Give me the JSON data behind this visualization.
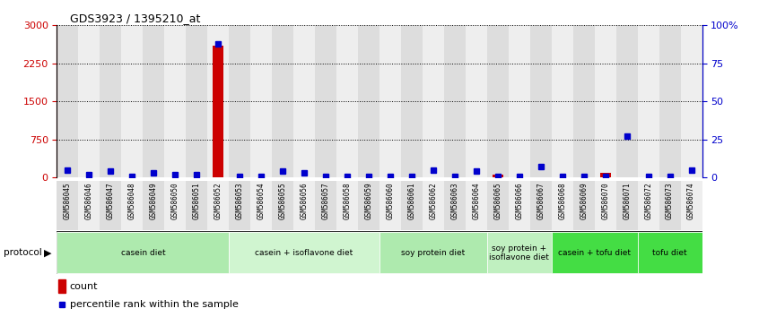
{
  "title": "GDS3923 / 1395210_at",
  "samples": [
    "GSM586045",
    "GSM586046",
    "GSM586047",
    "GSM586048",
    "GSM586049",
    "GSM586050",
    "GSM586051",
    "GSM586052",
    "GSM586053",
    "GSM586054",
    "GSM586055",
    "GSM586056",
    "GSM586057",
    "GSM586058",
    "GSM586059",
    "GSM586060",
    "GSM586061",
    "GSM586062",
    "GSM586063",
    "GSM586064",
    "GSM586065",
    "GSM586066",
    "GSM586067",
    "GSM586068",
    "GSM586069",
    "GSM586070",
    "GSM586071",
    "GSM586072",
    "GSM586073",
    "GSM586074"
  ],
  "count_values": [
    0,
    0,
    0,
    0,
    0,
    0,
    0,
    2600,
    0,
    0,
    0,
    0,
    0,
    0,
    0,
    0,
    0,
    0,
    0,
    0,
    50,
    0,
    0,
    0,
    0,
    100,
    0,
    0,
    0,
    0
  ],
  "percentile_values": [
    5,
    2,
    4,
    1,
    3,
    2,
    2,
    88,
    1,
    1,
    4,
    3,
    1,
    1,
    1,
    1,
    1,
    5,
    1,
    4,
    1,
    1,
    7,
    1,
    1,
    1,
    27,
    1,
    1,
    5
  ],
  "groups": [
    {
      "label": "casein diet",
      "start": 0,
      "end": 7,
      "color": "#aeeaae"
    },
    {
      "label": "casein + isoflavone diet",
      "start": 8,
      "end": 14,
      "color": "#d0f5d0"
    },
    {
      "label": "soy protein diet",
      "start": 15,
      "end": 19,
      "color": "#aeeaae"
    },
    {
      "label": "soy protein +\nisoflavone diet",
      "start": 20,
      "end": 22,
      "color": "#c0f0c0"
    },
    {
      "label": "casein + tofu diet",
      "start": 23,
      "end": 26,
      "color": "#44dd44"
    },
    {
      "label": "tofu diet",
      "start": 27,
      "end": 29,
      "color": "#44dd44"
    }
  ],
  "ylim_left": [
    0,
    3000
  ],
  "ylim_right": [
    0,
    100
  ],
  "yticks_left": [
    0,
    750,
    1500,
    2250,
    3000
  ],
  "ytick_labels_left": [
    "0",
    "750",
    "1500",
    "2250",
    "3000"
  ],
  "yticks_right": [
    0,
    25,
    50,
    75,
    100
  ],
  "ytick_labels_right": [
    "0",
    "25",
    "50",
    "75",
    "100%"
  ],
  "count_color": "#cc0000",
  "percentile_color": "#0000cc",
  "bg_color": "#ffffff",
  "col_bg_even": "#dddddd",
  "col_bg_odd": "#eeeeee"
}
